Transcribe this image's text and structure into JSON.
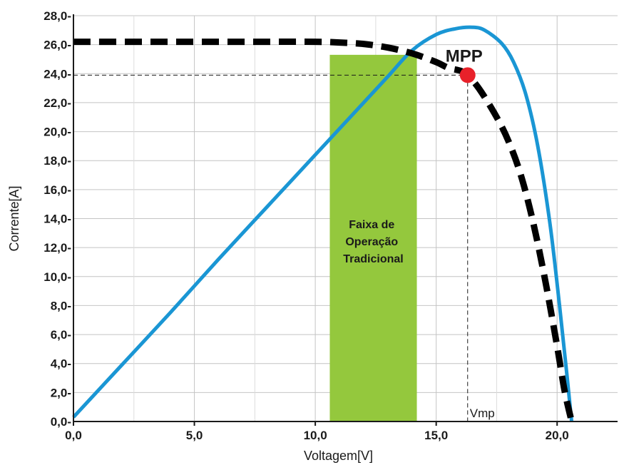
{
  "chart_data": {
    "type": "line",
    "xlabel": "Voltagem[V]",
    "ylabel": "Corrente[A]",
    "xlim": [
      0,
      22.5
    ],
    "ylim": [
      0,
      28
    ],
    "x_ticks": [
      0,
      5,
      10,
      15,
      20
    ],
    "x_tick_labels": [
      "0,0",
      "5,0",
      "10,0",
      "15,0",
      "20,0"
    ],
    "y_ticks": [
      0,
      2,
      4,
      6,
      8,
      10,
      12,
      14,
      16,
      18,
      20,
      22,
      24,
      26,
      28
    ],
    "y_tick_labels": [
      "0,0-",
      "2,0-",
      "4,0-",
      "6,0-",
      "8,0-",
      "10,0-",
      "12,0-",
      "14,0-",
      "16,0-",
      "18,0-",
      "20,0-",
      "22,0-",
      "24,0-",
      "26,0-",
      "28,0-"
    ],
    "grid": true,
    "series": [
      {
        "style": "dashed",
        "color": "#000000",
        "x": [
          0,
          2,
          4,
          6,
          8,
          10,
          11,
          12,
          13,
          14,
          15,
          15.5,
          16,
          16.3,
          16.8,
          17.5,
          18,
          18.5,
          19,
          19.5,
          20,
          20.3,
          20.6
        ],
        "y": [
          26.2,
          26.2,
          26.2,
          26.2,
          26.2,
          26.2,
          26.15,
          26.05,
          25.8,
          25.4,
          24.8,
          24.4,
          24.2,
          23.9,
          22.9,
          21,
          19.3,
          17,
          13.8,
          9.8,
          5.2,
          2.2,
          0
        ]
      },
      {
        "style": "solid",
        "color": "#1a96d4",
        "x": [
          0,
          2,
          4,
          6,
          8,
          10,
          12,
          13,
          14,
          15,
          15.8,
          16.5,
          17,
          17.7,
          18.2,
          18.7,
          19.2,
          19.7,
          20.1,
          20.4,
          20.6
        ],
        "y": [
          0.3,
          3.9,
          7.5,
          11.2,
          14.8,
          18.4,
          22.0,
          23.8,
          25.6,
          26.7,
          27.1,
          27.2,
          27.0,
          26.1,
          24.8,
          22.6,
          19.0,
          13.7,
          8.0,
          3.3,
          0
        ]
      }
    ],
    "band": {
      "x_start": 10.6,
      "x_end": 14.2,
      "color": "#94c83d",
      "label_lines": [
        "Faixa de",
        "Operação",
        "Tradicional"
      ]
    },
    "mpp": {
      "x": 16.3,
      "y": 23.9,
      "label": "MPP",
      "color": "#e8212a",
      "vmp_label": "Vmp"
    }
  }
}
